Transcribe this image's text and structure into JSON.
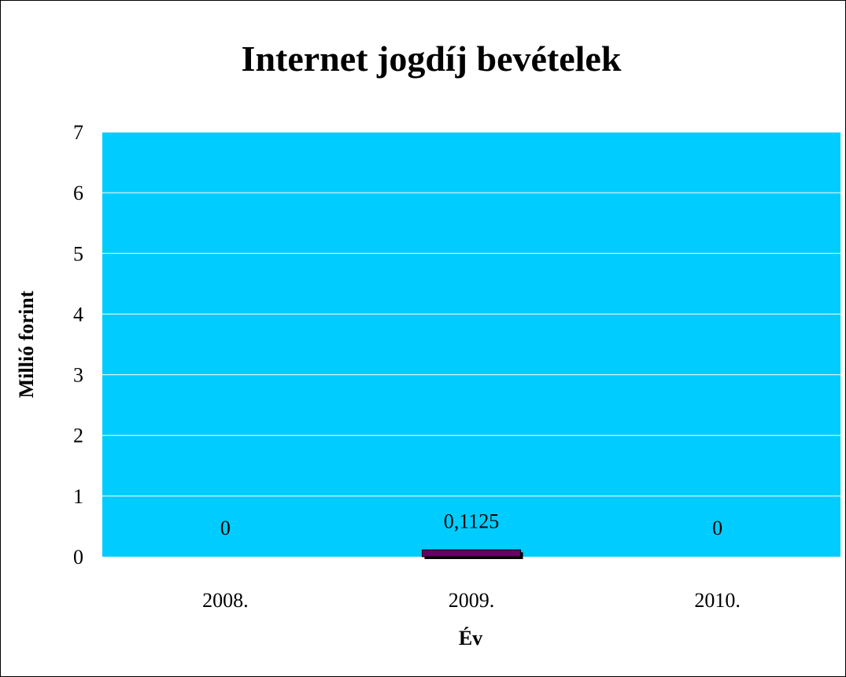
{
  "chart_data": {
    "type": "bar",
    "title": "Internet jogdíj bevételek",
    "xlabel": "Év",
    "ylabel": "Millió forint",
    "categories": [
      "2008.",
      "2009.",
      "2010."
    ],
    "values": [
      0,
      0.1125,
      0
    ],
    "data_labels": [
      "0",
      "0,1125",
      "0"
    ],
    "ylim": [
      0,
      7
    ],
    "yticks": [
      "0",
      "1",
      "2",
      "3",
      "4",
      "5",
      "6",
      "7"
    ],
    "grid": true,
    "legend": "none",
    "colors": {
      "plot_background": "#00CCFF",
      "bar": "#660066",
      "gridline": "#FFFFFF"
    }
  }
}
